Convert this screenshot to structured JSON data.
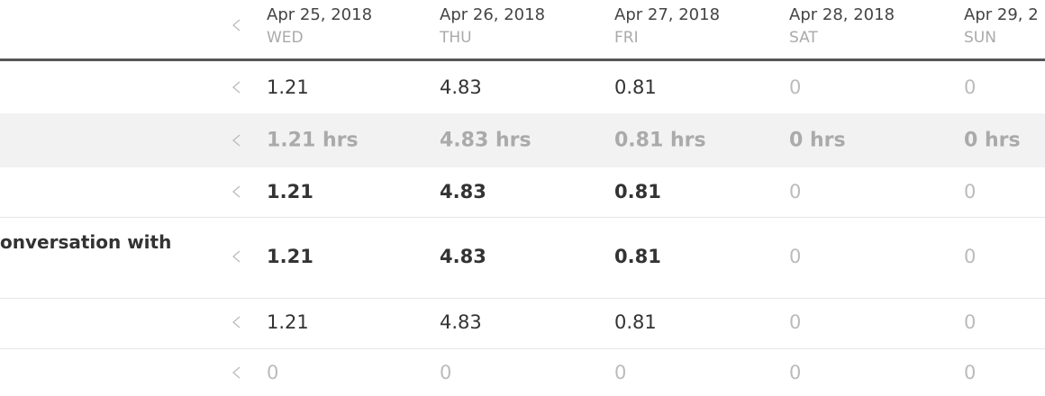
{
  "header": {
    "columns": [
      {
        "date": "Apr 25, 2018",
        "day": "WED"
      },
      {
        "date": "Apr 26, 2018",
        "day": "THU"
      },
      {
        "date": "Apr 27, 2018",
        "day": "FRI"
      },
      {
        "date": "Apr 28, 2018",
        "day": "SAT"
      },
      {
        "date": "Apr 29, 2",
        "day": "SUN"
      }
    ]
  },
  "table": {
    "rows": [
      {
        "cells": [
          "1.21",
          "4.83",
          "0.81",
          "0",
          "0"
        ]
      },
      {
        "cells": [
          "1.21 hrs",
          "4.83 hrs",
          "0.81 hrs",
          "0 hrs",
          "0 hrs"
        ]
      },
      {
        "cells": [
          "1.21",
          "4.83",
          "0.81",
          "0",
          "0"
        ]
      },
      {
        "label": "onversation with",
        "cells": [
          "1.21",
          "4.83",
          "0.81",
          "0",
          "0"
        ]
      },
      {
        "cells": [
          "1.21",
          "4.83",
          "0.81",
          "0",
          "0"
        ]
      },
      {
        "cells": [
          "0",
          "0",
          "0",
          "0",
          "0"
        ]
      }
    ]
  }
}
